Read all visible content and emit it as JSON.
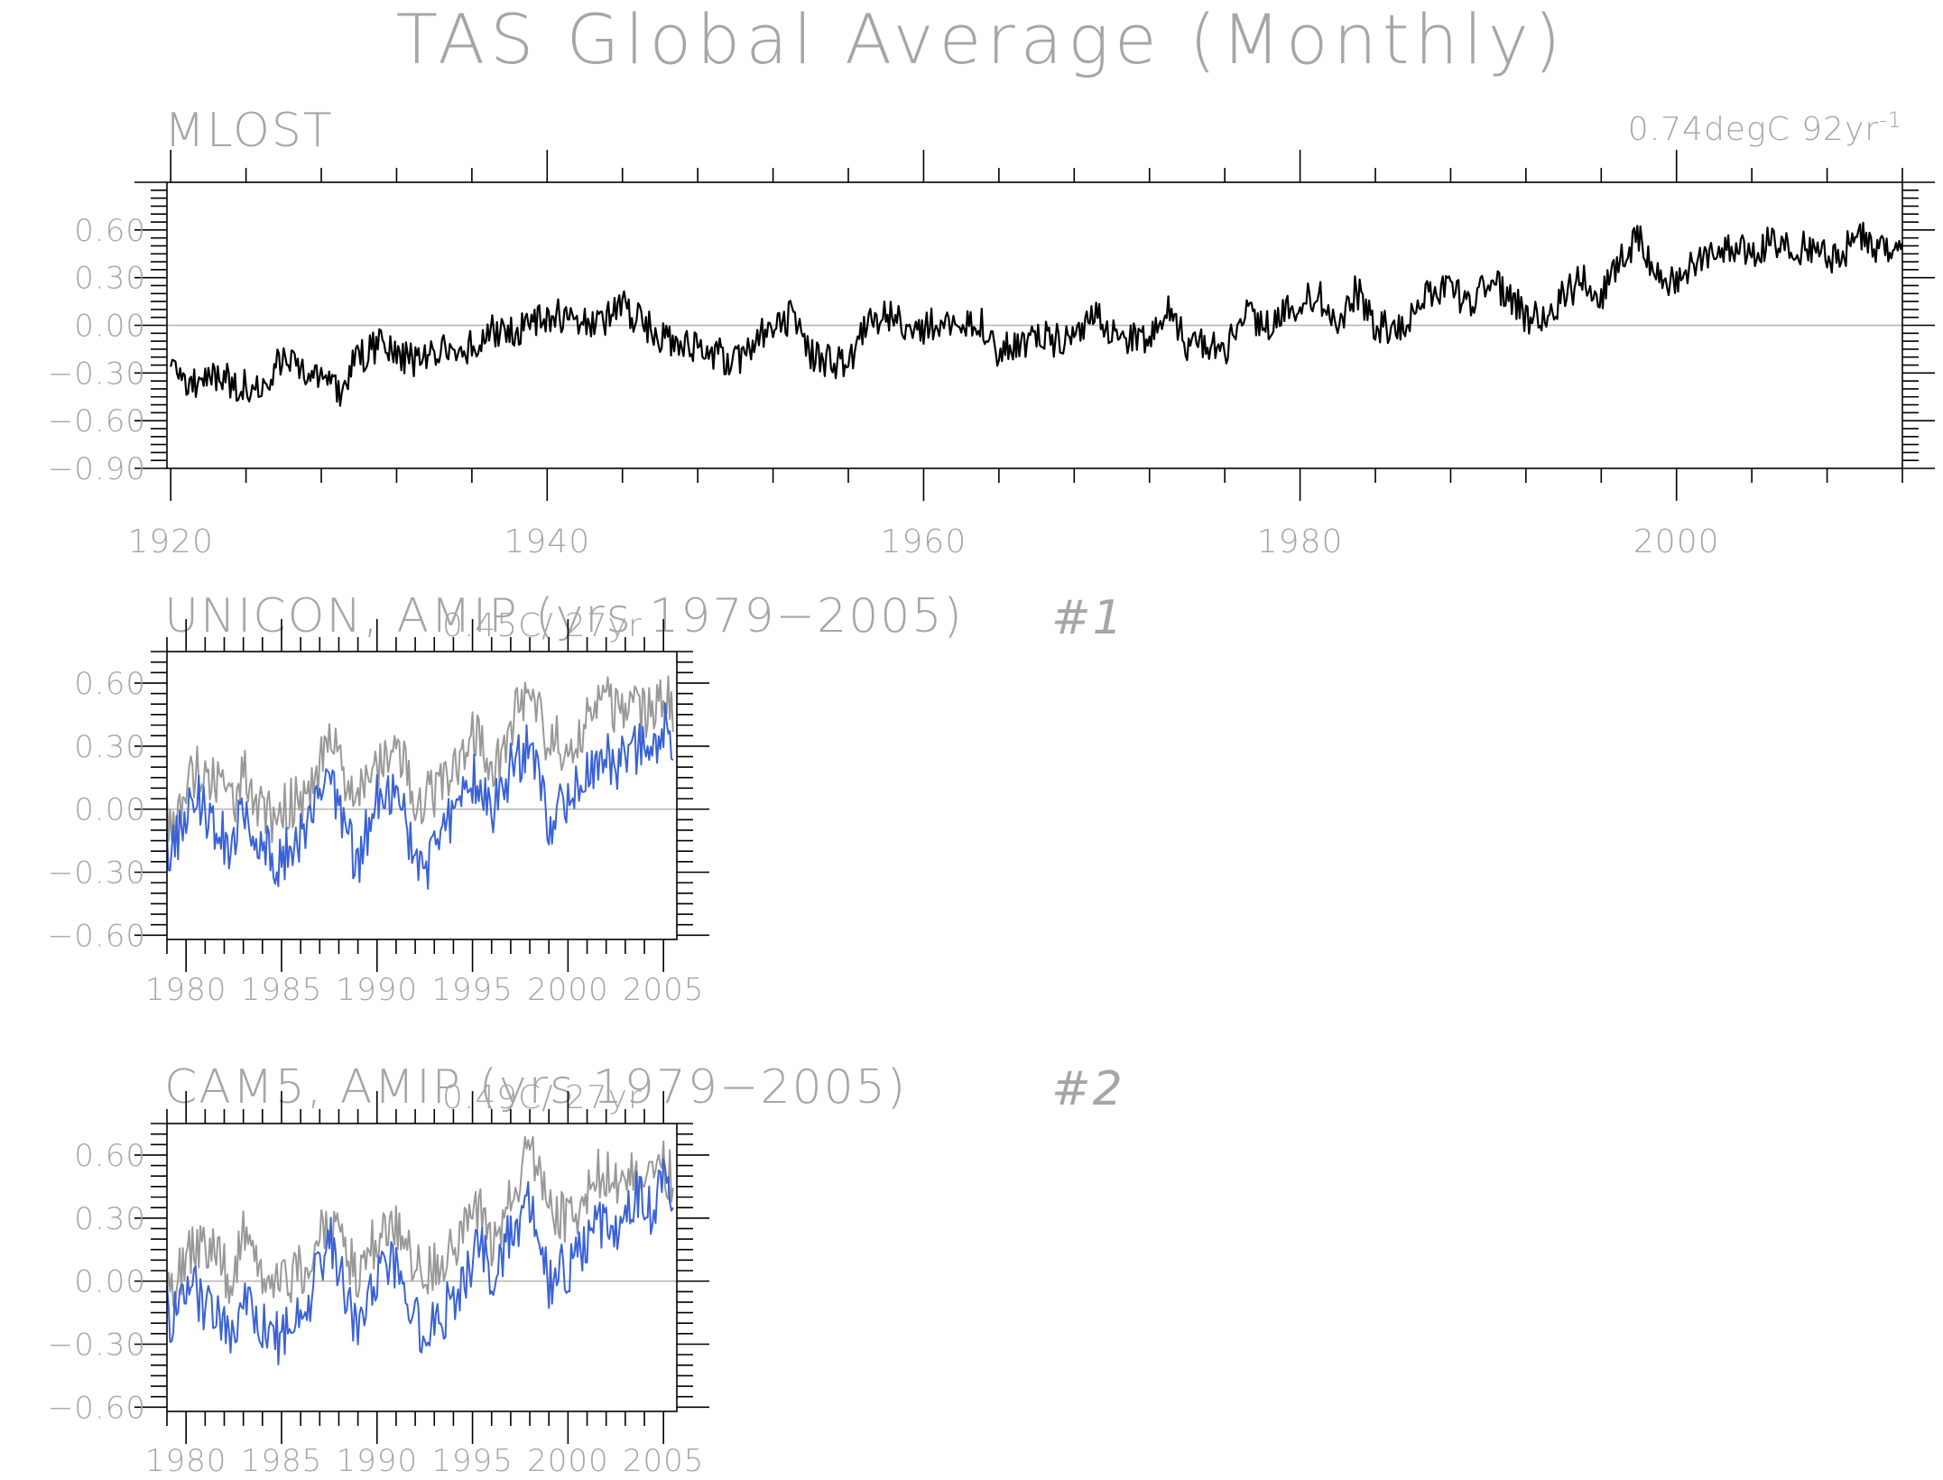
{
  "title": "TAS Global Average (Monthly)",
  "colors": {
    "obs": "#000000",
    "ref": "#999999",
    "model": "#3a62d8",
    "zero": "#b3b3b3",
    "text": "#a6a6a6"
  },
  "chart_data": [
    {
      "type": "line",
      "title": "MLOST",
      "trend": {
        "text": "0.74degC 92yr",
        "sup": "-1"
      },
      "xlim": [
        1919.8,
        2012.0
      ],
      "ylim": [
        -0.9,
        0.9
      ],
      "yticks": [
        "0.60",
        "0.30",
        "0.00",
        "−0.30",
        "−0.60",
        "−0.90"
      ],
      "yticks_values": [
        0.6,
        0.3,
        0.0,
        -0.3,
        -0.6,
        -0.9
      ],
      "xticks": [
        "1920",
        "1940",
        "1960",
        "1980",
        "2000"
      ],
      "xticks_values": [
        1920,
        1940,
        1960,
        1980,
        2000
      ],
      "series": [
        {
          "x": [
            1920,
            1921,
            1922,
            1923,
            1924,
            1925,
            1926,
            1927,
            1928,
            1929,
            1930,
            1931,
            1932,
            1933,
            1934,
            1935,
            1936,
            1937,
            1938,
            1939,
            1940,
            1941,
            1942,
            1943,
            1944,
            1945,
            1946,
            1947,
            1948,
            1949,
            1950,
            1951,
            1952,
            1953,
            1954,
            1955,
            1956,
            1957,
            1958,
            1959,
            1960,
            1961,
            1962,
            1963,
            1964,
            1965,
            1966,
            1967,
            1968,
            1969,
            1970,
            1971,
            1972,
            1973,
            1974,
            1975,
            1976,
            1977,
            1978,
            1979,
            1980,
            1981,
            1982,
            1983,
            1984,
            1985,
            1986,
            1987,
            1988,
            1989,
            1990,
            1991,
            1992,
            1993,
            1994,
            1995,
            1996,
            1997,
            1998,
            1999,
            2000,
            2001,
            2002,
            2003,
            2004,
            2005,
            2006,
            2007,
            2008,
            2009,
            2010,
            2011,
            2012
          ],
          "y": [
            -0.32,
            -0.38,
            -0.3,
            -0.35,
            -0.38,
            -0.33,
            -0.2,
            -0.28,
            -0.28,
            -0.4,
            -0.2,
            -0.13,
            -0.16,
            -0.24,
            -0.14,
            -0.18,
            -0.13,
            -0.02,
            -0.05,
            0.0,
            0.06,
            0.05,
            0.0,
            0.03,
            0.12,
            0.02,
            -0.08,
            -0.13,
            -0.15,
            -0.17,
            -0.24,
            -0.08,
            0.02,
            0.05,
            -0.18,
            -0.22,
            -0.26,
            0.0,
            0.08,
            0.02,
            -0.02,
            0.05,
            0.03,
            0.04,
            -0.17,
            -0.12,
            -0.07,
            -0.09,
            -0.12,
            0.06,
            -0.03,
            -0.1,
            -0.05,
            0.13,
            -0.14,
            -0.12,
            -0.2,
            0.1,
            0.0,
            0.05,
            0.14,
            0.18,
            0.02,
            0.22,
            -0.01,
            0.0,
            0.05,
            0.23,
            0.21,
            0.13,
            0.27,
            0.22,
            0.05,
            0.07,
            0.18,
            0.3,
            0.18,
            0.4,
            0.55,
            0.3,
            0.3,
            0.42,
            0.48,
            0.5,
            0.44,
            0.52,
            0.47,
            0.5,
            0.42,
            0.48,
            0.55,
            0.45,
            0.46
          ]
        }
      ]
    },
    {
      "type": "line",
      "title": "UNICON, AMIP (yrs 1979−2005)",
      "trend": {
        "text": "0.45C/ 27yr",
        "sup": ""
      },
      "label": "#1",
      "xlim": [
        1979.0,
        2005.7
      ],
      "ylim": [
        -0.62,
        0.75
      ],
      "yticks": [
        "0.60",
        "0.30",
        "0.00",
        "−0.30",
        "−0.60"
      ],
      "yticks_values": [
        0.6,
        0.3,
        0.0,
        -0.3,
        -0.6
      ],
      "xticks": [
        "1980",
        "1985",
        "1990",
        "1995",
        "2000",
        "2005"
      ],
      "xticks_values": [
        1980,
        1985,
        1990,
        1995,
        2000,
        2005
      ],
      "series": [
        {
          "color_key": "ref",
          "x": [
            1979,
            1979.5,
            1980,
            1980.5,
            1981,
            1981.5,
            1982,
            1982.5,
            1983,
            1983.5,
            1984,
            1984.5,
            1985,
            1985.5,
            1986,
            1986.5,
            1987,
            1987.5,
            1988,
            1988.5,
            1989,
            1989.5,
            1990,
            1990.5,
            1991,
            1991.5,
            1992,
            1992.5,
            1993,
            1993.5,
            1994,
            1994.5,
            1995,
            1995.5,
            1996,
            1996.5,
            1997,
            1997.5,
            1998,
            1998.5,
            1999,
            1999.5,
            2000,
            2000.5,
            2001,
            2001.5,
            2002,
            2002.5,
            2003,
            2003.5,
            2004,
            2004.5,
            2005,
            2005.5
          ],
          "y": [
            -0.05,
            0.0,
            0.1,
            0.18,
            0.12,
            0.15,
            0.05,
            0.0,
            0.22,
            0.1,
            0.0,
            -0.05,
            -0.02,
            0.02,
            0.05,
            0.1,
            0.2,
            0.3,
            0.25,
            0.1,
            0.05,
            0.12,
            0.22,
            0.2,
            0.3,
            0.18,
            0.06,
            0.05,
            0.08,
            0.1,
            0.18,
            0.25,
            0.35,
            0.3,
            0.2,
            0.25,
            0.4,
            0.5,
            0.62,
            0.48,
            0.3,
            0.32,
            0.3,
            0.35,
            0.42,
            0.5,
            0.52,
            0.45,
            0.5,
            0.48,
            0.45,
            0.5,
            0.55,
            0.48
          ]
        },
        {
          "color_key": "model",
          "x": [
            1979,
            1979.5,
            1980,
            1980.5,
            1981,
            1981.5,
            1982,
            1982.5,
            1983,
            1983.5,
            1984,
            1984.5,
            1985,
            1985.5,
            1986,
            1986.5,
            1987,
            1987.5,
            1988,
            1988.5,
            1989,
            1989.5,
            1990,
            1990.5,
            1991,
            1991.5,
            1992,
            1992.5,
            1993,
            1993.5,
            1994,
            1994.5,
            1995,
            1995.5,
            1996,
            1996.5,
            1997,
            1997.5,
            1998,
            1998.5,
            1999,
            1999.5,
            2000,
            2000.5,
            2001,
            2001.5,
            2002,
            2002.5,
            2003,
            2003.5,
            2004,
            2004.5,
            2005,
            2005.5
          ],
          "y": [
            -0.2,
            -0.15,
            -0.05,
            0.1,
            -0.02,
            -0.08,
            -0.15,
            -0.2,
            0.05,
            -0.1,
            -0.18,
            -0.22,
            -0.25,
            -0.18,
            -0.15,
            -0.1,
            0.05,
            0.12,
            0.0,
            -0.15,
            -0.25,
            -0.1,
            0.05,
            0.02,
            0.1,
            -0.05,
            -0.25,
            -0.3,
            -0.2,
            -0.12,
            -0.02,
            0.05,
            0.15,
            0.1,
            0.0,
            0.05,
            0.2,
            0.25,
            0.3,
            0.15,
            -0.05,
            -0.02,
            0.05,
            0.1,
            0.15,
            0.22,
            0.28,
            0.2,
            0.25,
            0.3,
            0.28,
            0.32,
            0.4,
            0.35
          ]
        }
      ]
    },
    {
      "type": "line",
      "title": "CAM5, AMIP (yrs 1979−2005)",
      "trend": {
        "text": "0.49C/ 27yr",
        "sup": ""
      },
      "label": "#2",
      "xlim": [
        1979.0,
        2005.7
      ],
      "ylim": [
        -0.62,
        0.75
      ],
      "yticks": [
        "0.60",
        "0.30",
        "0.00",
        "−0.30",
        "−0.60"
      ],
      "yticks_values": [
        0.6,
        0.3,
        0.0,
        -0.3,
        -0.6
      ],
      "xticks": [
        "1980",
        "1985",
        "1990",
        "1995",
        "2000",
        "2005"
      ],
      "xticks_values": [
        1980,
        1985,
        1990,
        1995,
        2000,
        2005
      ],
      "series": [
        {
          "color_key": "ref",
          "x": [
            1979,
            1979.5,
            1980,
            1980.5,
            1981,
            1981.5,
            1982,
            1982.5,
            1983,
            1983.5,
            1984,
            1984.5,
            1985,
            1985.5,
            1986,
            1986.5,
            1987,
            1987.5,
            1988,
            1988.5,
            1989,
            1989.5,
            1990,
            1990.5,
            1991,
            1991.5,
            1992,
            1992.5,
            1993,
            1993.5,
            1994,
            1994.5,
            1995,
            1995.5,
            1996,
            1996.5,
            1997,
            1997.5,
            1998,
            1998.5,
            1999,
            1999.5,
            2000,
            2000.5,
            2001,
            2001.5,
            2002,
            2002.5,
            2003,
            2003.5,
            2004,
            2004.5,
            2005,
            2005.5
          ],
          "y": [
            -0.05,
            0.0,
            0.1,
            0.18,
            0.12,
            0.15,
            0.05,
            0.0,
            0.22,
            0.1,
            0.0,
            -0.05,
            -0.02,
            0.02,
            0.05,
            0.1,
            0.2,
            0.3,
            0.25,
            0.1,
            0.05,
            0.12,
            0.22,
            0.2,
            0.3,
            0.18,
            0.06,
            0.05,
            0.08,
            0.1,
            0.18,
            0.25,
            0.35,
            0.3,
            0.2,
            0.25,
            0.4,
            0.5,
            0.62,
            0.48,
            0.3,
            0.32,
            0.3,
            0.35,
            0.42,
            0.5,
            0.52,
            0.45,
            0.5,
            0.48,
            0.45,
            0.5,
            0.55,
            0.48
          ]
        },
        {
          "color_key": "model",
          "x": [
            1979,
            1979.5,
            1980,
            1980.5,
            1981,
            1981.5,
            1982,
            1982.5,
            1983,
            1983.5,
            1984,
            1984.5,
            1985,
            1985.5,
            1986,
            1986.5,
            1987,
            1987.5,
            1988,
            1988.5,
            1989,
            1989.5,
            1990,
            1990.5,
            1991,
            1991.5,
            1992,
            1992.5,
            1993,
            1993.5,
            1994,
            1994.5,
            1995,
            1995.5,
            1996,
            1996.5,
            1997,
            1997.5,
            1998,
            1998.5,
            1999,
            1999.5,
            2000,
            2000.5,
            2001,
            2001.5,
            2002,
            2002.5,
            2003,
            2003.5,
            2004,
            2004.5,
            2005,
            2005.5
          ],
          "y": [
            -0.15,
            -0.18,
            -0.1,
            -0.05,
            -0.12,
            -0.15,
            -0.2,
            -0.22,
            -0.05,
            -0.15,
            -0.2,
            -0.25,
            -0.28,
            -0.22,
            -0.2,
            -0.1,
            0.1,
            0.2,
            0.05,
            -0.12,
            -0.22,
            -0.12,
            0.0,
            0.05,
            0.1,
            -0.05,
            -0.2,
            -0.25,
            -0.18,
            -0.15,
            -0.1,
            -0.05,
            0.1,
            0.15,
            0.05,
            0.1,
            0.25,
            0.3,
            0.4,
            0.2,
            0.0,
            0.05,
            0.05,
            0.1,
            0.15,
            0.25,
            0.3,
            0.2,
            0.3,
            0.4,
            0.35,
            0.3,
            0.5,
            0.35
          ]
        }
      ]
    }
  ]
}
